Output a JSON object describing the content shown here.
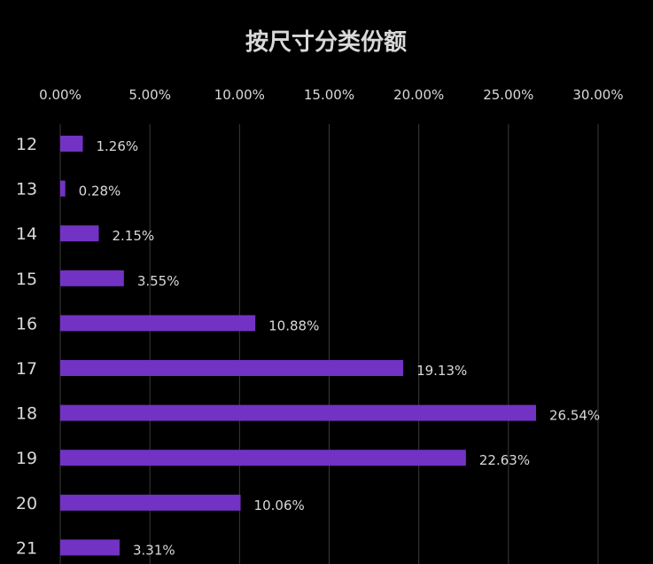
{
  "chart_data": {
    "type": "bar",
    "orientation": "horizontal",
    "title": "按尺寸分类份额",
    "categories": [
      "12",
      "13",
      "14",
      "15",
      "16",
      "17",
      "18",
      "19",
      "20",
      "21"
    ],
    "values": [
      1.26,
      0.28,
      2.15,
      3.55,
      10.88,
      19.13,
      26.54,
      22.63,
      10.06,
      3.31
    ],
    "data_labels": [
      "1.26%",
      "0.28%",
      "2.15%",
      "3.55%",
      "10.88%",
      "19.13%",
      "26.54%",
      "22.63%",
      "10.06%",
      "3.31%"
    ],
    "x_ticks": [
      0,
      5,
      10,
      15,
      20,
      25,
      30
    ],
    "x_tick_labels": [
      "0.00%",
      "5.00%",
      "10.00%",
      "15.00%",
      "20.00%",
      "25.00%",
      "30.00%"
    ],
    "xlim": [
      0,
      30
    ],
    "xaxis_position": "top",
    "grid": true,
    "xlabel": "",
    "ylabel": "",
    "colors": {
      "bar": "#7232c4",
      "background": "#000000",
      "text": "#d9d9d9",
      "grid": "#3a3a3a"
    }
  }
}
